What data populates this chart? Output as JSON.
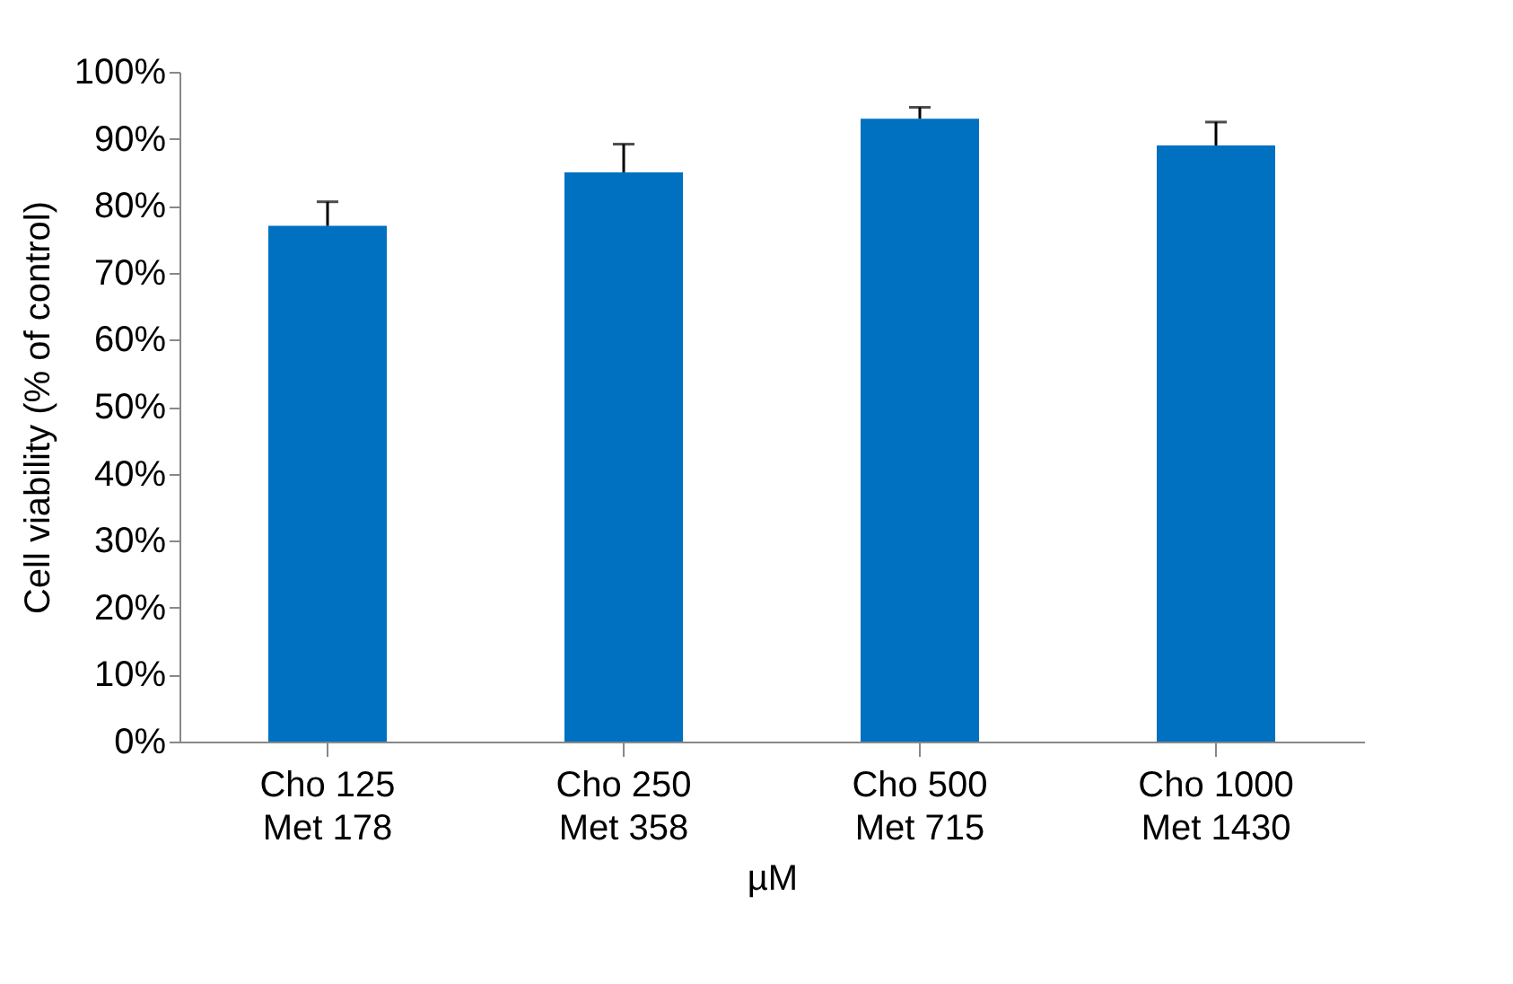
{
  "chart_data": {
    "type": "bar",
    "xlabel": "µM",
    "ylabel": "Cell viability (% of control)",
    "categories": [
      "Cho 125\nMet 178",
      "Cho 250\nMet 358",
      "Cho 500\nMet 715",
      "Cho 1000\nMet 1430"
    ],
    "values": [
      77,
      85,
      93,
      89
    ],
    "color": "#0070c0",
    "errors": [
      [
        77,
        80.6
      ],
      [
        85,
        89.2
      ],
      [
        93,
        94.7
      ],
      [
        89,
        92.5
      ]
    ],
    "ylim": [
      0,
      100
    ],
    "yticks": [
      {
        "value": 0,
        "label": "0%"
      },
      {
        "value": 10,
        "label": "10%"
      },
      {
        "value": 20,
        "label": "20%"
      },
      {
        "value": 30,
        "label": "30%"
      },
      {
        "value": 40,
        "label": "40%"
      },
      {
        "value": 50,
        "label": "50%"
      },
      {
        "value": 60,
        "label": "60%"
      },
      {
        "value": 70,
        "label": "70%"
      },
      {
        "value": 80,
        "label": "80%"
      },
      {
        "value": 90,
        "label": "90%"
      },
      {
        "value": 100,
        "label": "100%"
      }
    ],
    "grid": false
  }
}
